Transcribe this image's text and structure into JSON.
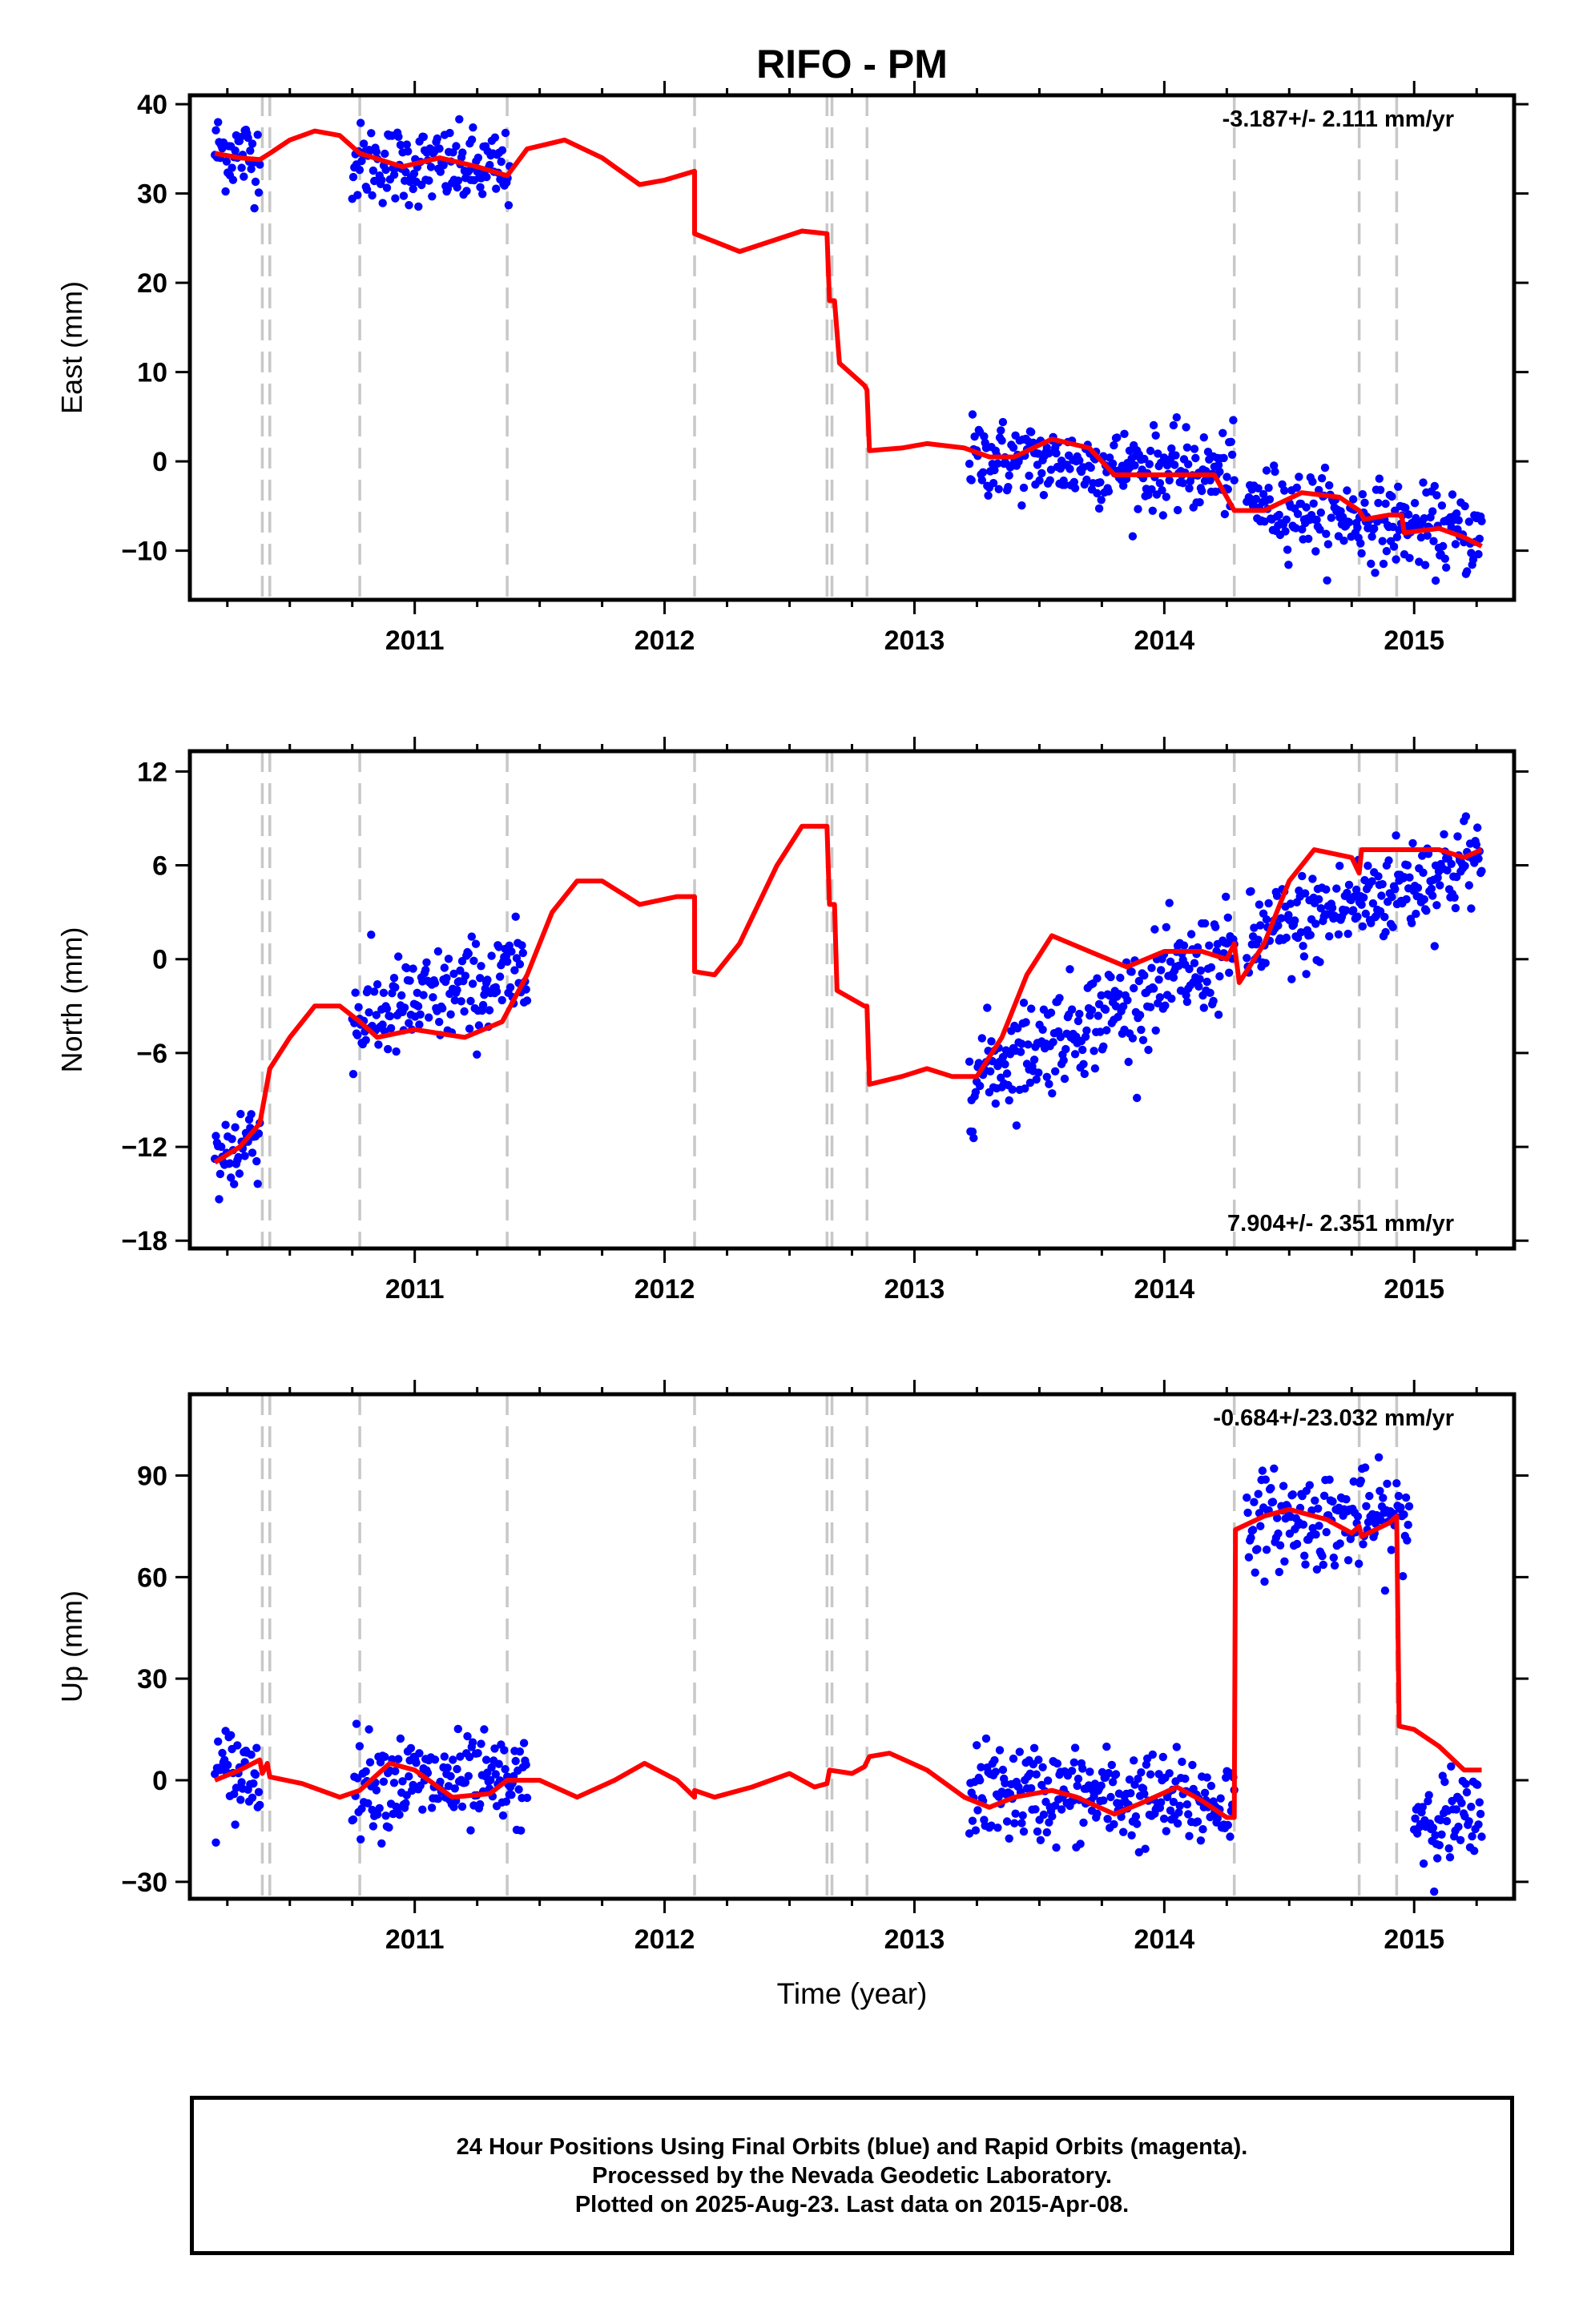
{
  "chart_data": [
    {
      "type": "scatter",
      "title": "RIFO - PM",
      "ylabel": "East (mm)",
      "xlabel": "",
      "xlim": [
        2010.1,
        2015.4
      ],
      "ylim": [
        -15.5,
        41
      ],
      "x_ticks": [
        2011,
        2012,
        2013,
        2014,
        2015
      ],
      "y_ticks": [
        40,
        30,
        20,
        10,
        0,
        -10
      ],
      "y_tick_labels": [
        "40",
        "30",
        "20",
        "10",
        "0",
        "−10"
      ],
      "rate_label": "-3.187+/- 2.111 mm/yr",
      "rate_label_position": "top-right",
      "data_ranges": [
        {
          "x": [
            2010.2,
            2010.38
          ],
          "trend": [
            35,
            34
          ]
        },
        {
          "x": [
            2010.75,
            2011.38
          ],
          "trend": [
            33.5,
            32.5
          ]
        },
        {
          "x": [
            2013.22,
            2014.28
          ],
          "trend": [
            0.5,
            -1.5
          ]
        },
        {
          "x": [
            2014.33,
            2015.27
          ],
          "trend": [
            -4.5,
            -8.5
          ]
        }
      ],
      "data_scatter": 2.2,
      "model_curve": [
        [
          2010.2,
          34.5
        ],
        [
          2010.3,
          34.0
        ],
        [
          2010.38,
          33.8
        ],
        [
          2010.42,
          34.5
        ],
        [
          2010.5,
          36.0
        ],
        [
          2010.6,
          37.0
        ],
        [
          2010.7,
          36.5
        ],
        [
          2010.78,
          34.5
        ],
        [
          2010.95,
          33.0
        ],
        [
          2011.1,
          34.0
        ],
        [
          2011.25,
          33.0
        ],
        [
          2011.37,
          32.0
        ],
        [
          2011.45,
          35.0
        ],
        [
          2011.6,
          36.0
        ],
        [
          2011.75,
          34.0
        ],
        [
          2011.9,
          31.0
        ],
        [
          2012.0,
          31.5
        ],
        [
          2012.12,
          32.5
        ],
        [
          2012.12,
          25.5
        ],
        [
          2012.3,
          23.5
        ],
        [
          2012.55,
          25.8
        ],
        [
          2012.65,
          25.5
        ],
        [
          2012.66,
          18.0
        ],
        [
          2012.68,
          18.0
        ],
        [
          2012.7,
          11.0
        ],
        [
          2012.8,
          8.5
        ],
        [
          2012.81,
          8.0
        ],
        [
          2012.82,
          1.2
        ],
        [
          2012.95,
          1.5
        ],
        [
          2013.05,
          2.0
        ],
        [
          2013.2,
          1.5
        ],
        [
          2013.3,
          0.5
        ],
        [
          2013.4,
          0.5
        ],
        [
          2013.55,
          2.5
        ],
        [
          2013.7,
          1.5
        ],
        [
          2013.8,
          -1.5
        ],
        [
          2014.0,
          -1.5
        ],
        [
          2014.2,
          -1.5
        ],
        [
          2014.28,
          -5.5
        ],
        [
          2014.4,
          -5.5
        ],
        [
          2014.55,
          -3.5
        ],
        [
          2014.7,
          -4.0
        ],
        [
          2014.78,
          -5.5
        ],
        [
          2014.8,
          -6.5
        ],
        [
          2014.9,
          -6.0
        ],
        [
          2014.95,
          -6.0
        ],
        [
          2014.96,
          -8.0
        ],
        [
          2015.1,
          -7.5
        ],
        [
          2015.2,
          -8.5
        ],
        [
          2015.27,
          -9.5
        ]
      ],
      "offset_lines_x": [
        2010.39,
        2010.42,
        2010.78,
        2011.37,
        2012.12,
        2012.65,
        2012.67,
        2012.81,
        2014.28,
        2014.78,
        2014.93
      ]
    },
    {
      "type": "scatter",
      "title": "",
      "ylabel": "North (mm)",
      "xlabel": "",
      "xlim": [
        2010.1,
        2015.4
      ],
      "ylim": [
        -18.5,
        13.3
      ],
      "x_ticks": [
        2011,
        2012,
        2013,
        2014,
        2015
      ],
      "y_ticks": [
        12,
        6,
        0,
        -6,
        -12,
        -18
      ],
      "y_tick_labels": [
        "12",
        "6",
        "0",
        "−6",
        "−12",
        "−18"
      ],
      "rate_label": "7.904+/- 2.351 mm/yr",
      "rate_label_position": "bottom-right",
      "data_ranges": [
        {
          "x": [
            2010.2,
            2010.38
          ],
          "trend": [
            -13,
            -11
          ]
        },
        {
          "x": [
            2010.75,
            2011.45
          ],
          "trend": [
            -4,
            -1
          ]
        },
        {
          "x": [
            2013.22,
            2014.28
          ],
          "trend": [
            -7.5,
            0.5
          ]
        },
        {
          "x": [
            2014.33,
            2015.27
          ],
          "trend": [
            1,
            6.5
          ]
        }
      ],
      "data_scatter": 1.6,
      "model_curve": [
        [
          2010.2,
          -13.0
        ],
        [
          2010.3,
          -12.0
        ],
        [
          2010.38,
          -10.5
        ],
        [
          2010.42,
          -7.0
        ],
        [
          2010.5,
          -5.0
        ],
        [
          2010.6,
          -3.0
        ],
        [
          2010.7,
          -3.0
        ],
        [
          2010.78,
          -4.0
        ],
        [
          2010.85,
          -5.0
        ],
        [
          2011.0,
          -4.5
        ],
        [
          2011.2,
          -5.0
        ],
        [
          2011.35,
          -4.0
        ],
        [
          2011.45,
          -1.0
        ],
        [
          2011.55,
          3.0
        ],
        [
          2011.65,
          5.0
        ],
        [
          2011.75,
          5.0
        ],
        [
          2011.9,
          3.5
        ],
        [
          2012.05,
          4.0
        ],
        [
          2012.12,
          4.0
        ],
        [
          2012.12,
          -0.8
        ],
        [
          2012.2,
          -1.0
        ],
        [
          2012.3,
          1.0
        ],
        [
          2012.45,
          6.0
        ],
        [
          2012.55,
          8.5
        ],
        [
          2012.65,
          8.5
        ],
        [
          2012.66,
          3.5
        ],
        [
          2012.68,
          3.5
        ],
        [
          2012.69,
          -2.0
        ],
        [
          2012.8,
          -3.0
        ],
        [
          2012.81,
          -3.0
        ],
        [
          2012.82,
          -8.0
        ],
        [
          2012.95,
          -7.5
        ],
        [
          2013.05,
          -7.0
        ],
        [
          2013.15,
          -7.5
        ],
        [
          2013.25,
          -7.5
        ],
        [
          2013.35,
          -5.0
        ],
        [
          2013.45,
          -1.0
        ],
        [
          2013.55,
          1.5
        ],
        [
          2013.7,
          0.5
        ],
        [
          2013.85,
          -0.5
        ],
        [
          2014.0,
          0.5
        ],
        [
          2014.15,
          0.5
        ],
        [
          2014.25,
          0.0
        ],
        [
          2014.28,
          1.0
        ],
        [
          2014.3,
          -1.5
        ],
        [
          2014.4,
          1.0
        ],
        [
          2014.5,
          5.0
        ],
        [
          2014.6,
          7.0
        ],
        [
          2014.75,
          6.5
        ],
        [
          2014.78,
          5.5
        ],
        [
          2014.79,
          7.0
        ],
        [
          2014.95,
          7.0
        ],
        [
          2015.1,
          7.0
        ],
        [
          2015.2,
          6.5
        ],
        [
          2015.27,
          7.0
        ]
      ],
      "offset_lines_x": [
        2010.39,
        2010.42,
        2010.78,
        2011.37,
        2012.12,
        2012.65,
        2012.67,
        2012.81,
        2014.28,
        2014.78,
        2014.93
      ]
    },
    {
      "type": "scatter",
      "title": "",
      "ylabel": "Up (mm)",
      "xlabel": "Time (year)",
      "xlim": [
        2010.1,
        2015.4
      ],
      "ylim": [
        -35,
        114
      ],
      "x_ticks": [
        2011,
        2012,
        2013,
        2014,
        2015
      ],
      "y_ticks": [
        90,
        60,
        30,
        0,
        -30
      ],
      "y_tick_labels": [
        "90",
        "60",
        "30",
        "0",
        "−30"
      ],
      "rate_label": "-0.684+/-23.032 mm/yr",
      "rate_label_position": "top-right",
      "data_ranges": [
        {
          "x": [
            2010.2,
            2010.38
          ],
          "trend": [
            2,
            2
          ]
        },
        {
          "x": [
            2010.75,
            2011.45
          ],
          "trend": [
            0,
            -2
          ]
        },
        {
          "x": [
            2013.22,
            2014.28
          ],
          "trend": [
            -3,
            -7
          ]
        },
        {
          "x": [
            2014.33,
            2014.98
          ],
          "trend": [
            77,
            77
          ]
        },
        {
          "x": [
            2015.0,
            2015.27
          ],
          "trend": [
            -10,
            -13
          ]
        }
      ],
      "data_scatter": 7,
      "model_curve": [
        [
          2010.2,
          0.0
        ],
        [
          2010.3,
          3.0
        ],
        [
          2010.38,
          6.0
        ],
        [
          2010.39,
          2.0
        ],
        [
          2010.41,
          5.0
        ],
        [
          2010.42,
          1.0
        ],
        [
          2010.55,
          -1.0
        ],
        [
          2010.7,
          -5.0
        ],
        [
          2010.78,
          -3.0
        ],
        [
          2010.9,
          5.0
        ],
        [
          2011.0,
          3.0
        ],
        [
          2011.15,
          -5.0
        ],
        [
          2011.3,
          -4.0
        ],
        [
          2011.37,
          0.0
        ],
        [
          2011.5,
          0.0
        ],
        [
          2011.65,
          -5.0
        ],
        [
          2011.8,
          0.0
        ],
        [
          2011.92,
          5.0
        ],
        [
          2012.05,
          0.0
        ],
        [
          2012.12,
          -5.0
        ],
        [
          2012.12,
          -3.0
        ],
        [
          2012.2,
          -5.0
        ],
        [
          2012.35,
          -2.0
        ],
        [
          2012.5,
          2.0
        ],
        [
          2012.6,
          -2.0
        ],
        [
          2012.65,
          -1.0
        ],
        [
          2012.66,
          3.0
        ],
        [
          2012.75,
          2.0
        ],
        [
          2012.8,
          4.0
        ],
        [
          2012.82,
          7.0
        ],
        [
          2012.9,
          8.0
        ],
        [
          2013.05,
          3.0
        ],
        [
          2013.2,
          -5.0
        ],
        [
          2013.3,
          -8.0
        ],
        [
          2013.4,
          -5.0
        ],
        [
          2013.55,
          -3.0
        ],
        [
          2013.65,
          -5.0
        ],
        [
          2013.8,
          -10.0
        ],
        [
          2013.9,
          -7.0
        ],
        [
          2014.05,
          -2.0
        ],
        [
          2014.15,
          -6.0
        ],
        [
          2014.25,
          -11.0
        ],
        [
          2014.28,
          -11.0
        ],
        [
          2014.285,
          74.0
        ],
        [
          2014.4,
          78.0
        ],
        [
          2014.5,
          80.0
        ],
        [
          2014.65,
          77.0
        ],
        [
          2014.75,
          73.0
        ],
        [
          2014.78,
          75.0
        ],
        [
          2014.79,
          72.0
        ],
        [
          2014.9,
          76.0
        ],
        [
          2014.93,
          78.0
        ],
        [
          2014.94,
          16.0
        ],
        [
          2015.0,
          15.0
        ],
        [
          2015.1,
          10.0
        ],
        [
          2015.2,
          3.0
        ],
        [
          2015.27,
          3.0
        ]
      ],
      "offset_lines_x": [
        2010.39,
        2010.42,
        2010.78,
        2011.37,
        2012.12,
        2012.65,
        2012.67,
        2012.81,
        2014.28,
        2014.78,
        2014.93
      ]
    }
  ],
  "footer": {
    "line1": "24 Hour Positions Using Final Orbits (blue) and Rapid Orbits (magenta).",
    "line2": "Processed by the Nevada Geodetic Laboratory.",
    "line3": "Plotted on 2025-Aug-23. Last data on 2015-Apr-08."
  },
  "colors": {
    "data_points": "#0000ff",
    "model_line": "#ff0000",
    "offset_lines": "#c8c8c8",
    "axes": "#000000"
  }
}
